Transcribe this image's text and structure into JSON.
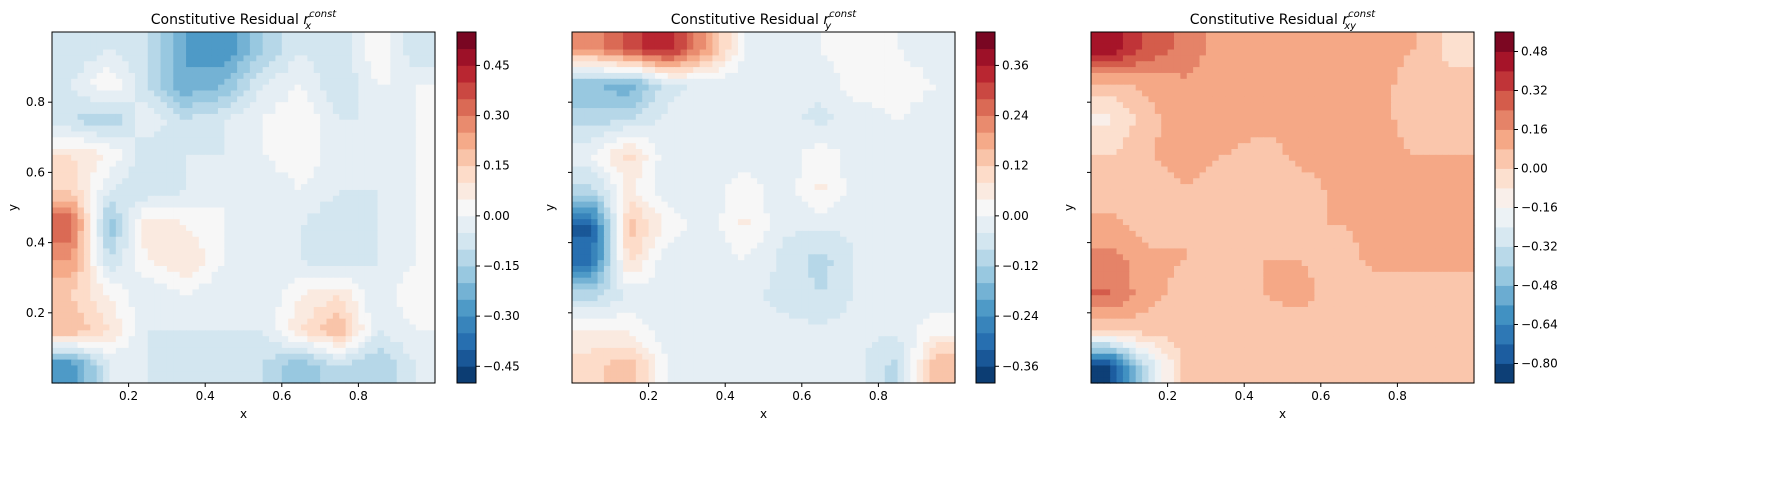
{
  "chart_data": [
    {
      "type": "heatmap",
      "style": "filled-contour",
      "colormap": "RdBu_r",
      "title_prefix": "Constitutive Residual",
      "title_symbol": {
        "base": "r",
        "sub": "x",
        "sup": "const"
      },
      "xlabel": "x",
      "ylabel": "y",
      "xlim": [
        0,
        1
      ],
      "ylim": [
        0,
        1
      ],
      "xticks": [
        "0.2",
        "0.4",
        "0.6",
        "0.8"
      ],
      "yticks": [
        "0.2",
        "0.4",
        "0.6",
        "0.8"
      ],
      "show_yticklabels": true,
      "levels": {
        "min": -0.5,
        "max": 0.55,
        "step": 0.05
      },
      "colorbar_ticks": [
        "-0.45",
        "-0.30",
        "-0.15",
        "0.00",
        "0.15",
        "0.30",
        "0.45"
      ],
      "x_grid": [
        0.05,
        0.15,
        0.25,
        0.35,
        0.45,
        0.55,
        0.65,
        0.75,
        0.85,
        0.95
      ],
      "y_grid": [
        0.95,
        0.85,
        0.75,
        0.65,
        0.55,
        0.45,
        0.35,
        0.25,
        0.15,
        0.05
      ],
      "z": [
        [
          -0.1,
          -0.05,
          -0.1,
          -0.25,
          -0.3,
          -0.15,
          -0.05,
          -0.1,
          0.05,
          -0.1
        ],
        [
          -0.05,
          0.05,
          -0.1,
          -0.25,
          -0.2,
          -0.05,
          0,
          -0.1,
          0,
          0
        ],
        [
          -0.1,
          -0.15,
          0,
          -0.1,
          -0.05,
          0,
          0.05,
          -0.05,
          -0.05,
          0
        ],
        [
          0.1,
          0.05,
          -0.1,
          -0.05,
          -0.05,
          0,
          0.05,
          -0.05,
          -0.05,
          0
        ],
        [
          0.15,
          -0.05,
          -0.1,
          -0.05,
          0,
          -0.05,
          0,
          -0.05,
          -0.05,
          0
        ],
        [
          0.35,
          -0.2,
          0.1,
          0.05,
          0,
          -0.05,
          -0.05,
          -0.1,
          -0.05,
          0
        ],
        [
          0.25,
          -0.1,
          0.05,
          0.1,
          0,
          -0.05,
          -0.05,
          -0.1,
          -0.05,
          0
        ],
        [
          0.15,
          0.05,
          -0.05,
          0,
          -0.05,
          -0.05,
          0.05,
          0.1,
          -0.05,
          0.05
        ],
        [
          0.2,
          0.1,
          -0.05,
          -0.05,
          -0.05,
          -0.05,
          0.1,
          0.2,
          -0.05,
          0
        ],
        [
          -0.3,
          -0.05,
          -0.05,
          -0.1,
          -0.05,
          -0.1,
          -0.2,
          -0.1,
          -0.15,
          -0.05
        ]
      ]
    },
    {
      "type": "heatmap",
      "style": "filled-contour",
      "colormap": "RdBu_r",
      "title_prefix": "Constitutive Residual",
      "title_symbol": {
        "base": "r",
        "sub": "y",
        "sup": "const"
      },
      "xlabel": "x",
      "ylabel": "y",
      "xlim": [
        0,
        1
      ],
      "ylim": [
        0,
        1
      ],
      "xticks": [
        "0.2",
        "0.4",
        "0.6",
        "0.8"
      ],
      "yticks": [
        "0.2",
        "0.4",
        "0.6",
        "0.8"
      ],
      "show_yticklabels": false,
      "levels": {
        "min": -0.4,
        "max": 0.44,
        "step": 0.04
      },
      "colorbar_ticks": [
        "-0.36",
        "-0.24",
        "-0.12",
        "0.00",
        "0.12",
        "0.24",
        "0.36"
      ],
      "x_grid": [
        0.05,
        0.15,
        0.25,
        0.35,
        0.45,
        0.55,
        0.65,
        0.75,
        0.85,
        0.95
      ],
      "y_grid": [
        0.95,
        0.85,
        0.75,
        0.65,
        0.55,
        0.45,
        0.35,
        0.25,
        0.15,
        0.05
      ],
      "z": [
        [
          0.2,
          0.3,
          0.35,
          0.2,
          0,
          -0.03,
          0,
          0.03,
          0,
          -0.03
        ],
        [
          -0.15,
          -0.2,
          -0.05,
          -0.03,
          -0.03,
          -0.03,
          -0.03,
          0.03,
          0.03,
          0
        ],
        [
          -0.1,
          -0.08,
          -0.03,
          -0.03,
          -0.03,
          -0.03,
          -0.05,
          -0.03,
          0,
          -0.03
        ],
        [
          0,
          0.1,
          -0.03,
          -0.03,
          -0.03,
          -0.03,
          0.03,
          -0.03,
          -0.03,
          -0.03
        ],
        [
          -0.1,
          0.05,
          -0.03,
          -0.03,
          0.03,
          -0.03,
          0.05,
          -0.03,
          -0.03,
          -0.03
        ],
        [
          -0.33,
          0.15,
          0.03,
          -0.03,
          0.05,
          -0.03,
          -0.03,
          -0.03,
          -0.03,
          -0.03
        ],
        [
          -0.3,
          0.1,
          -0.03,
          -0.03,
          0,
          -0.05,
          -0.1,
          -0.03,
          -0.03,
          -0.03
        ],
        [
          -0.1,
          -0.03,
          -0.03,
          -0.03,
          -0.03,
          -0.05,
          -0.08,
          -0.03,
          -0.03,
          -0.03
        ],
        [
          0.05,
          0.03,
          -0.03,
          -0.03,
          -0.03,
          -0.03,
          -0.03,
          -0.03,
          -0.03,
          0.03
        ],
        [
          0.1,
          0.15,
          0,
          -0.03,
          -0.03,
          -0.03,
          -0.03,
          -0.03,
          -0.1,
          0.15
        ]
      ]
    },
    {
      "type": "heatmap",
      "style": "filled-contour",
      "colormap": "RdBu_r",
      "title_prefix": "Constitutive Residual",
      "title_symbol": {
        "base": "r",
        "sub": "xy",
        "sup": "const"
      },
      "xlabel": "x",
      "ylabel": "y",
      "xlim": [
        0,
        1
      ],
      "ylim": [
        0,
        1
      ],
      "xticks": [
        "0.2",
        "0.4",
        "0.6",
        "0.8"
      ],
      "yticks": [
        "0.2",
        "0.4",
        "0.6",
        "0.8"
      ],
      "show_yticklabels": false,
      "levels": {
        "min": -0.88,
        "max": 0.56,
        "step": 0.08
      },
      "colorbar_ticks": [
        "-0.80",
        "-0.64",
        "-0.48",
        "-0.32",
        "-0.16",
        "0.00",
        "0.16",
        "0.32",
        "0.48"
      ],
      "x_grid": [
        0.05,
        0.15,
        0.25,
        0.35,
        0.45,
        0.55,
        0.65,
        0.75,
        0.85,
        0.95
      ],
      "y_grid": [
        0.95,
        0.85,
        0.75,
        0.65,
        0.55,
        0.45,
        0.35,
        0.25,
        0.15,
        0.05
      ],
      "z": [
        [
          0.45,
          0.3,
          0.2,
          0.12,
          0.08,
          0.08,
          0.08,
          0.1,
          0.08,
          -0.05
        ],
        [
          0.05,
          0.1,
          0.15,
          0.12,
          0.08,
          0.1,
          0.1,
          0.1,
          0.05,
          0.05
        ],
        [
          -0.1,
          0.05,
          0.15,
          0.12,
          0.1,
          0.1,
          0.15,
          0.1,
          0.05,
          0.05
        ],
        [
          0,
          0.08,
          0.1,
          0.08,
          0.05,
          0.1,
          0.1,
          0.1,
          0.08,
          0.08
        ],
        [
          0.05,
          0.05,
          0.08,
          0.05,
          0.05,
          0.05,
          0.1,
          0.1,
          0.1,
          0.1
        ],
        [
          0.1,
          0.05,
          0.08,
          0.08,
          0.05,
          0.08,
          0.08,
          0.1,
          0.1,
          0.1
        ],
        [
          0.2,
          0.1,
          0.08,
          0.05,
          0.08,
          0.08,
          0.05,
          0.1,
          0.1,
          0.1
        ],
        [
          0.25,
          0.1,
          0.05,
          0.05,
          0.08,
          0.1,
          0.05,
          0.05,
          0.05,
          0.05
        ],
        [
          0,
          0.05,
          0.05,
          0.05,
          0.05,
          0.05,
          0.05,
          0.05,
          0.08,
          0.05
        ],
        [
          -0.8,
          -0.3,
          0.05,
          0.05,
          0.05,
          0.05,
          0.05,
          0.05,
          0.05,
          0.05
        ]
      ]
    }
  ]
}
